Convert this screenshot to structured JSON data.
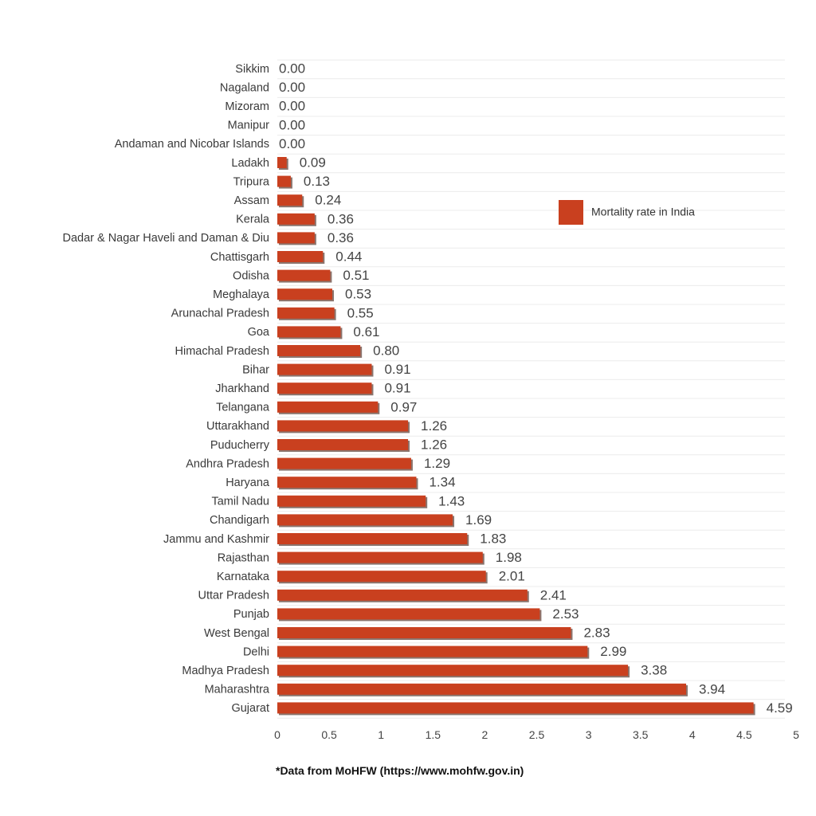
{
  "chart_data": {
    "type": "bar",
    "orientation": "horizontal",
    "categories": [
      "Sikkim",
      "Nagaland",
      "Mizoram",
      "Manipur",
      "Andaman and Nicobar Islands",
      "Ladakh",
      "Tripura",
      "Assam",
      "Kerala",
      "Dadar & Nagar Haveli and Daman & Diu",
      "Chattisgarh",
      "Odisha",
      "Meghalaya",
      "Arunachal Pradesh",
      "Goa",
      "Himachal Pradesh",
      "Bihar",
      "Jharkhand",
      "Telangana",
      "Uttarakhand",
      "Puducherry",
      "Andhra Pradesh",
      "Haryana",
      "Tamil Nadu",
      "Chandigarh",
      "Jammu and Kashmir",
      "Rajasthan",
      "Karnataka",
      "Uttar Pradesh",
      "Punjab",
      "West Bengal",
      "Delhi",
      "Madhya Pradesh",
      "Maharashtra",
      "Gujarat"
    ],
    "series": [
      {
        "name": "Mortality rate in India",
        "values": [
          0.0,
          0.0,
          0.0,
          0.0,
          0.0,
          0.09,
          0.13,
          0.24,
          0.36,
          0.36,
          0.44,
          0.51,
          0.53,
          0.55,
          0.61,
          0.8,
          0.91,
          0.91,
          0.97,
          1.26,
          1.26,
          1.29,
          1.34,
          1.43,
          1.69,
          1.83,
          1.98,
          2.01,
          2.41,
          2.53,
          2.83,
          2.99,
          3.38,
          3.94,
          4.59
        ],
        "color": "#c9401f"
      }
    ],
    "data_labels": [
      "0.00",
      "0.00",
      "0.00",
      "0.00",
      "0.00",
      "0.09",
      "0.13",
      "0.24",
      "0.36",
      "0.36",
      "0.44",
      "0.51",
      "0.53",
      "0.55",
      "0.61",
      "0.80",
      "0.91",
      "0.91",
      "0.97",
      "1.26",
      "1.26",
      "1.29",
      "1.34",
      "1.43",
      "1.69",
      "1.83",
      "1.98",
      "2.01",
      "2.41",
      "2.53",
      "2.83",
      "2.99",
      "3.38",
      "3.94",
      "4.59"
    ],
    "xlim": [
      0,
      5
    ],
    "xticks": [
      "0",
      "0.5",
      "1",
      "1.5",
      "2",
      "2.5",
      "3",
      "3.5",
      "4",
      "4.5",
      "5"
    ],
    "grid": "horizontal",
    "legend": {
      "position": "top-right",
      "entries": [
        "Mortality rate in India"
      ]
    }
  },
  "footnote": "*Data from MoHFW (https://www.mohfw.gov.in)"
}
